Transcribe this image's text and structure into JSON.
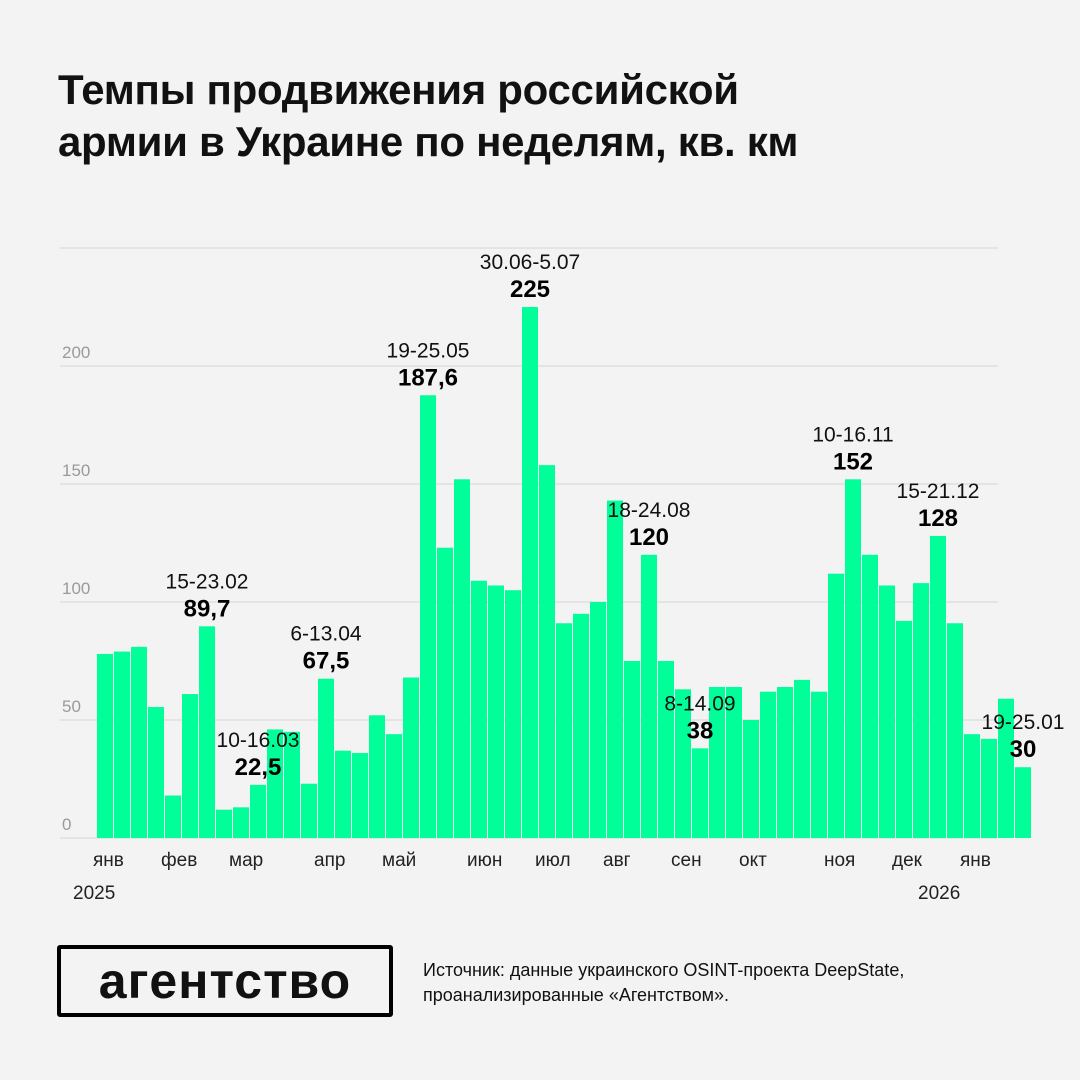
{
  "title_lines": [
    "Темпы продвижения российской",
    "армии в Украине по неделям, кв. км"
  ],
  "logo_text": "агентство",
  "source_lines": [
    "Источник: данные украинского OSINT-проекта DeepState,",
    "проанализированные «Агентством»."
  ],
  "colors": {
    "bar": "#00ff99",
    "background": "#f3f3f3",
    "grid": "#d6d6d6"
  },
  "chart_data": {
    "type": "bar",
    "title": "Темпы продвижения российской армии в Украине по неделям, кв. км",
    "xlabel": "",
    "ylabel": "",
    "ylim": [
      0,
      250
    ],
    "yticks": [
      0,
      50,
      100,
      150,
      200
    ],
    "grid": true,
    "month_labels": [
      {
        "label": "янв",
        "week_index": 0
      },
      {
        "label": "фев",
        "week_index": 4
      },
      {
        "label": "мар",
        "week_index": 8
      },
      {
        "label": "апр",
        "week_index": 13
      },
      {
        "label": "май",
        "week_index": 17
      },
      {
        "label": "июн",
        "week_index": 22
      },
      {
        "label": "июл",
        "week_index": 26
      },
      {
        "label": "авг",
        "week_index": 30
      },
      {
        "label": "сен",
        "week_index": 34
      },
      {
        "label": "окт",
        "week_index": 38
      },
      {
        "label": "ноя",
        "week_index": 43
      },
      {
        "label": "дек",
        "week_index": 47
      },
      {
        "label": "янв",
        "week_index": 51
      }
    ],
    "year_labels": [
      {
        "label": "2025",
        "week_index": 0
      },
      {
        "label": "2026",
        "week_index": 51
      }
    ],
    "values": [
      78,
      79,
      81,
      55.5,
      18,
      61,
      89.7,
      12,
      13,
      22.5,
      46,
      45,
      23,
      67.5,
      37,
      36,
      52,
      44,
      68,
      187.6,
      123,
      152,
      109,
      107,
      105,
      225,
      158,
      91,
      95,
      100,
      143,
      75,
      120,
      75,
      63,
      38,
      64,
      64,
      50,
      62,
      64,
      67,
      62,
      112,
      152,
      120,
      107,
      92,
      108,
      128,
      91,
      44,
      42,
      59,
      30
    ],
    "annotations": [
      {
        "week_index": 6,
        "date": "15-23.02",
        "value": "89,7"
      },
      {
        "week_index": 9,
        "date": "10-16.03",
        "value": "22,5"
      },
      {
        "week_index": 13,
        "date": "6-13.04",
        "value": "67,5"
      },
      {
        "week_index": 19,
        "date": "19-25.05",
        "value": "187,6"
      },
      {
        "week_index": 25,
        "date": "30.06-5.07",
        "value": "225"
      },
      {
        "week_index": 32,
        "date": "18-24.08",
        "value": "120"
      },
      {
        "week_index": 35,
        "date": "8-14.09",
        "value": "38"
      },
      {
        "week_index": 44,
        "date": "10-16.11",
        "value": "152"
      },
      {
        "week_index": 49,
        "date": "15-21.12",
        "value": "128"
      },
      {
        "week_index": 54,
        "date": "19-25.01",
        "value": "30"
      }
    ]
  }
}
